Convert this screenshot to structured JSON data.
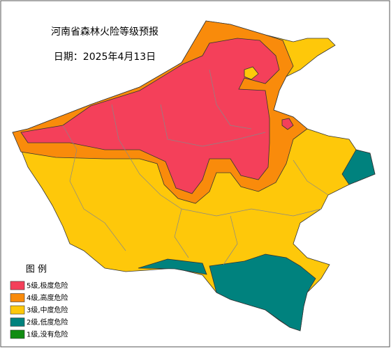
{
  "title": "河南省森林火险等级预报",
  "date": "日期：2025年4月13日",
  "legend": {
    "title": "图 例",
    "items": [
      {
        "label": "5级,极度危险",
        "color": "#f4405a"
      },
      {
        "label": "4级,高度危险",
        "color": "#f98b0b"
      },
      {
        "label": "3级,中度危险",
        "color": "#fec80a"
      },
      {
        "label": "2级,低度危险",
        "color": "#00827e"
      },
      {
        "label": "1级,没有危险",
        "color": "#118c12"
      }
    ]
  }
}
